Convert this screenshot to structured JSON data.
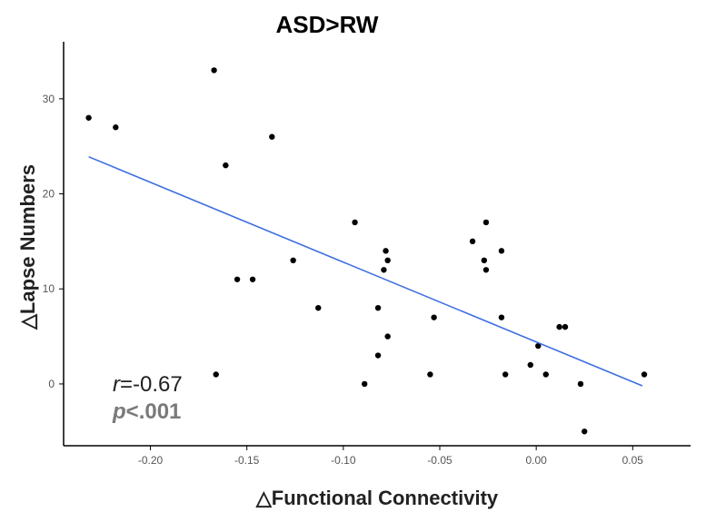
{
  "chart_data": {
    "type": "scatter",
    "title": "ASD>RW",
    "xlabel": "△Functional Connectivity",
    "ylabel": "△Lapse Numbers",
    "xlim": [
      -0.245,
      0.08
    ],
    "ylim": [
      -6.5,
      36
    ],
    "xticks": [
      -0.2,
      -0.15,
      -0.1,
      -0.05,
      0.0,
      0.05
    ],
    "xtick_labels": [
      "-0.20",
      "-0.15",
      "-0.10",
      "-0.05",
      "0.00",
      "0.05"
    ],
    "yticks": [
      0,
      10,
      20,
      30
    ],
    "ytick_labels": [
      "0",
      "10",
      "20",
      "30"
    ],
    "grid": false,
    "points": [
      {
        "x": -0.232,
        "y": 28
      },
      {
        "x": -0.218,
        "y": 27
      },
      {
        "x": -0.167,
        "y": 33
      },
      {
        "x": -0.166,
        "y": 1
      },
      {
        "x": -0.161,
        "y": 23
      },
      {
        "x": -0.155,
        "y": 11
      },
      {
        "x": -0.147,
        "y": 11
      },
      {
        "x": -0.137,
        "y": 26
      },
      {
        "x": -0.126,
        "y": 13
      },
      {
        "x": -0.113,
        "y": 8
      },
      {
        "x": -0.094,
        "y": 17
      },
      {
        "x": -0.089,
        "y": 0
      },
      {
        "x": -0.082,
        "y": 8
      },
      {
        "x": -0.082,
        "y": 3
      },
      {
        "x": -0.079,
        "y": 12
      },
      {
        "x": -0.078,
        "y": 14
      },
      {
        "x": -0.077,
        "y": 5
      },
      {
        "x": -0.077,
        "y": 13
      },
      {
        "x": -0.055,
        "y": 1
      },
      {
        "x": -0.053,
        "y": 7
      },
      {
        "x": -0.033,
        "y": 15
      },
      {
        "x": -0.027,
        "y": 13
      },
      {
        "x": -0.026,
        "y": 17
      },
      {
        "x": -0.026,
        "y": 12
      },
      {
        "x": -0.018,
        "y": 14
      },
      {
        "x": -0.018,
        "y": 7
      },
      {
        "x": -0.016,
        "y": 1
      },
      {
        "x": -0.003,
        "y": 2
      },
      {
        "x": 0.001,
        "y": 4
      },
      {
        "x": 0.005,
        "y": 1
      },
      {
        "x": 0.012,
        "y": 6
      },
      {
        "x": 0.015,
        "y": 6
      },
      {
        "x": 0.023,
        "y": 0
      },
      {
        "x": 0.025,
        "y": -5
      },
      {
        "x": 0.056,
        "y": 1
      }
    ],
    "regression": {
      "x": [
        -0.232,
        0.055
      ],
      "y": [
        23.9,
        -0.2
      ],
      "color": "#3d6fe0"
    },
    "annotations": {
      "r_symbol": "r",
      "r_value": "=-0.67",
      "p_symbol": "p",
      "p_value": "<.001"
    },
    "point_color": "#000000"
  }
}
